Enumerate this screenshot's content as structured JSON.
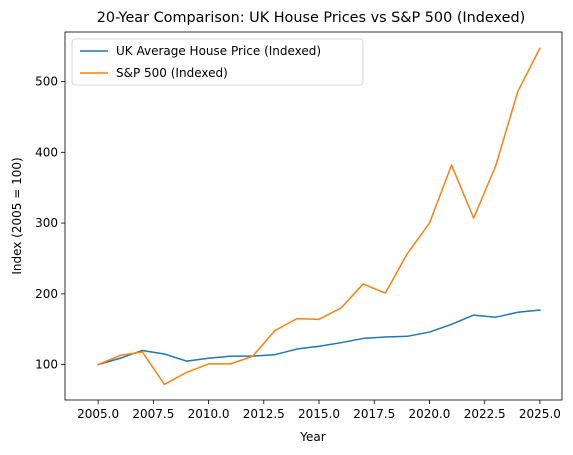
{
  "chart_data": {
    "type": "line",
    "title": "20-Year Comparison: UK House Prices vs S&P 500 (Indexed)",
    "xlabel": "Year",
    "ylabel": "Index (2005 = 100)",
    "x": [
      2005,
      2006,
      2007,
      2008,
      2009,
      2010,
      2011,
      2012,
      2013,
      2014,
      2015,
      2016,
      2017,
      2018,
      2019,
      2020,
      2021,
      2022,
      2023,
      2024,
      2025
    ],
    "xlim": [
      2003.5,
      2026.0
    ],
    "ylim": [
      50,
      570
    ],
    "xticks": [
      "2005.0",
      "2007.5",
      "2010.0",
      "2012.5",
      "2015.0",
      "2017.5",
      "2020.0",
      "2022.5",
      "2025.0"
    ],
    "xtick_values": [
      2005.0,
      2007.5,
      2010.0,
      2012.5,
      2015.0,
      2017.5,
      2020.0,
      2022.5,
      2025.0
    ],
    "yticks": [
      "100",
      "200",
      "300",
      "400",
      "500"
    ],
    "ytick_values": [
      100,
      200,
      300,
      400,
      500
    ],
    "legend_placement": "top-left",
    "grid": false,
    "series": [
      {
        "name": "UK Average House Price (Indexed)",
        "color": "#1f77b4",
        "values": [
          100,
          109,
          120,
          115,
          105,
          109,
          112,
          112,
          114,
          122,
          126,
          131,
          137,
          139,
          140,
          146,
          157,
          170,
          167,
          174,
          177
        ]
      },
      {
        "name": "S&P 500 (Indexed)",
        "color": "#ff7f0e",
        "values": [
          100,
          113,
          118,
          72,
          89,
          101,
          101,
          112,
          148,
          165,
          164,
          180,
          214,
          201,
          257,
          300,
          382,
          307,
          381,
          486,
          547
        ]
      }
    ]
  }
}
